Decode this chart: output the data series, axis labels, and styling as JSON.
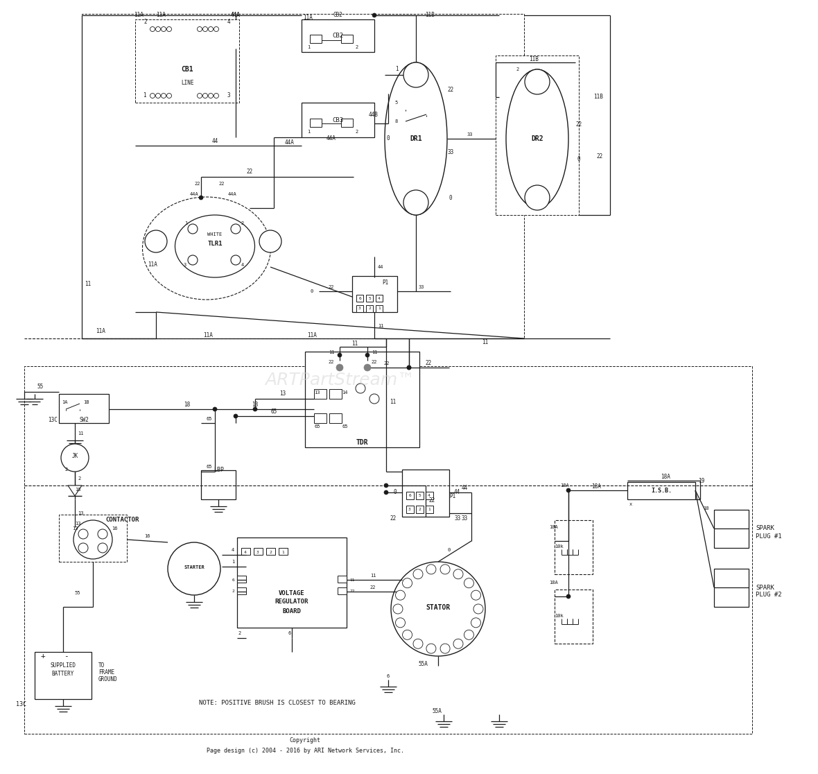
{
  "bg_color": "#ffffff",
  "line_color": "#1a1a1a",
  "copyright_text": "Copyright\nPage design (c) 2004 - 2016 by ARI Network Services, Inc.",
  "watermark": "ARTPartStream™",
  "note_text": "NOTE: POSITIVE BRUSH IS CLOSEST TO BEARING"
}
